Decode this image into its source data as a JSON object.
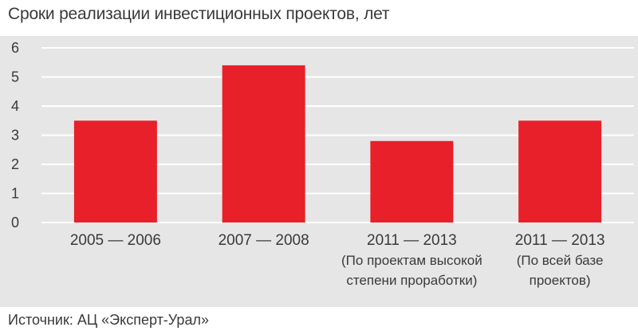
{
  "chart_data": {
    "type": "bar",
    "title": "Сроки реализации инвестиционных проектов, лет",
    "categories": [
      [
        "2005 — 2006"
      ],
      [
        "2007 — 2008"
      ],
      [
        "2011 — 2013",
        "(По проектам высокой",
        "степени проработки)"
      ],
      [
        "2011 — 2013",
        "(По всей базе",
        "проектов)"
      ]
    ],
    "values": [
      3.5,
      5.4,
      2.8,
      3.5
    ],
    "ylim": [
      0,
      6
    ],
    "yticks": [
      "0",
      "1",
      "2",
      "3",
      "4",
      "5",
      "6"
    ],
    "grid": true,
    "bar_color": "#e8202a",
    "background_color": "#e6e6e6",
    "source": "Источник: АЦ «Эксперт-Урал»"
  }
}
